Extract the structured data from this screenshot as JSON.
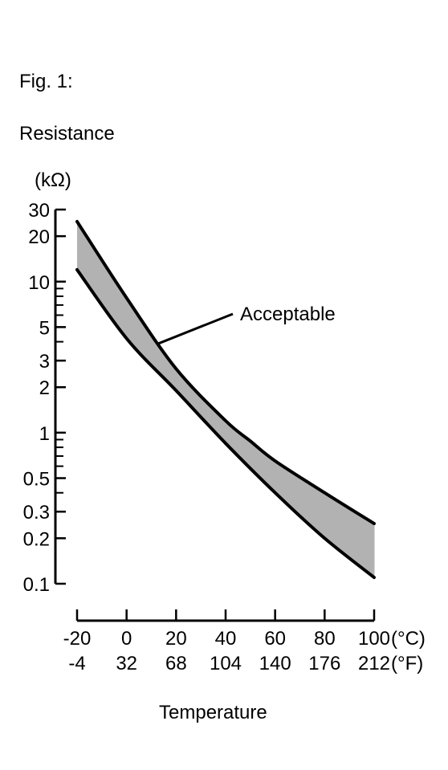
{
  "figure_label": "Fig. 1:",
  "chart_data": {
    "type": "area",
    "title": "",
    "ylabel": "Resistance",
    "ylabel_unit": "(kΩ)",
    "xlabel": "Temperature",
    "y_scale": "log",
    "ylim": [
      0.1,
      30
    ],
    "y_ticks": [
      30,
      20,
      10,
      5,
      3,
      2,
      1,
      0.5,
      0.3,
      0.2,
      0.1
    ],
    "y_tick_labels": [
      "30",
      "20",
      "10",
      "5",
      "3",
      "2",
      "1",
      "0.5",
      "0.3",
      "0.2",
      "0.1"
    ],
    "xlim": [
      -20,
      100
    ],
    "x_ticks_c": [
      -20,
      0,
      20,
      40,
      60,
      80,
      100
    ],
    "x_tick_labels_c": [
      "-20",
      "0",
      "20",
      "40",
      "60",
      "80",
      "100"
    ],
    "x_tick_labels_f": [
      "-4",
      "32",
      "68",
      "104",
      "140",
      "176",
      "212"
    ],
    "x_unit_c": "(°C)",
    "x_unit_f": "(°F)",
    "series": [
      {
        "role": "upper",
        "x": [
          -20,
          0,
          20,
          40,
          50,
          60,
          80,
          100
        ],
        "values": [
          25,
          7.8,
          2.65,
          1.2,
          0.88,
          0.65,
          0.4,
          0.25
        ]
      },
      {
        "role": "lower",
        "x": [
          -20,
          0,
          20,
          40,
          60,
          80,
          100
        ],
        "values": [
          12,
          4.2,
          1.9,
          0.85,
          0.4,
          0.2,
          0.11
        ]
      }
    ],
    "band_color": "#b2b2b2",
    "line_color": "#000000",
    "annotation": {
      "text": "Acceptable",
      "x": 13,
      "y": 3.9
    },
    "grid": false,
    "legend": "none"
  }
}
